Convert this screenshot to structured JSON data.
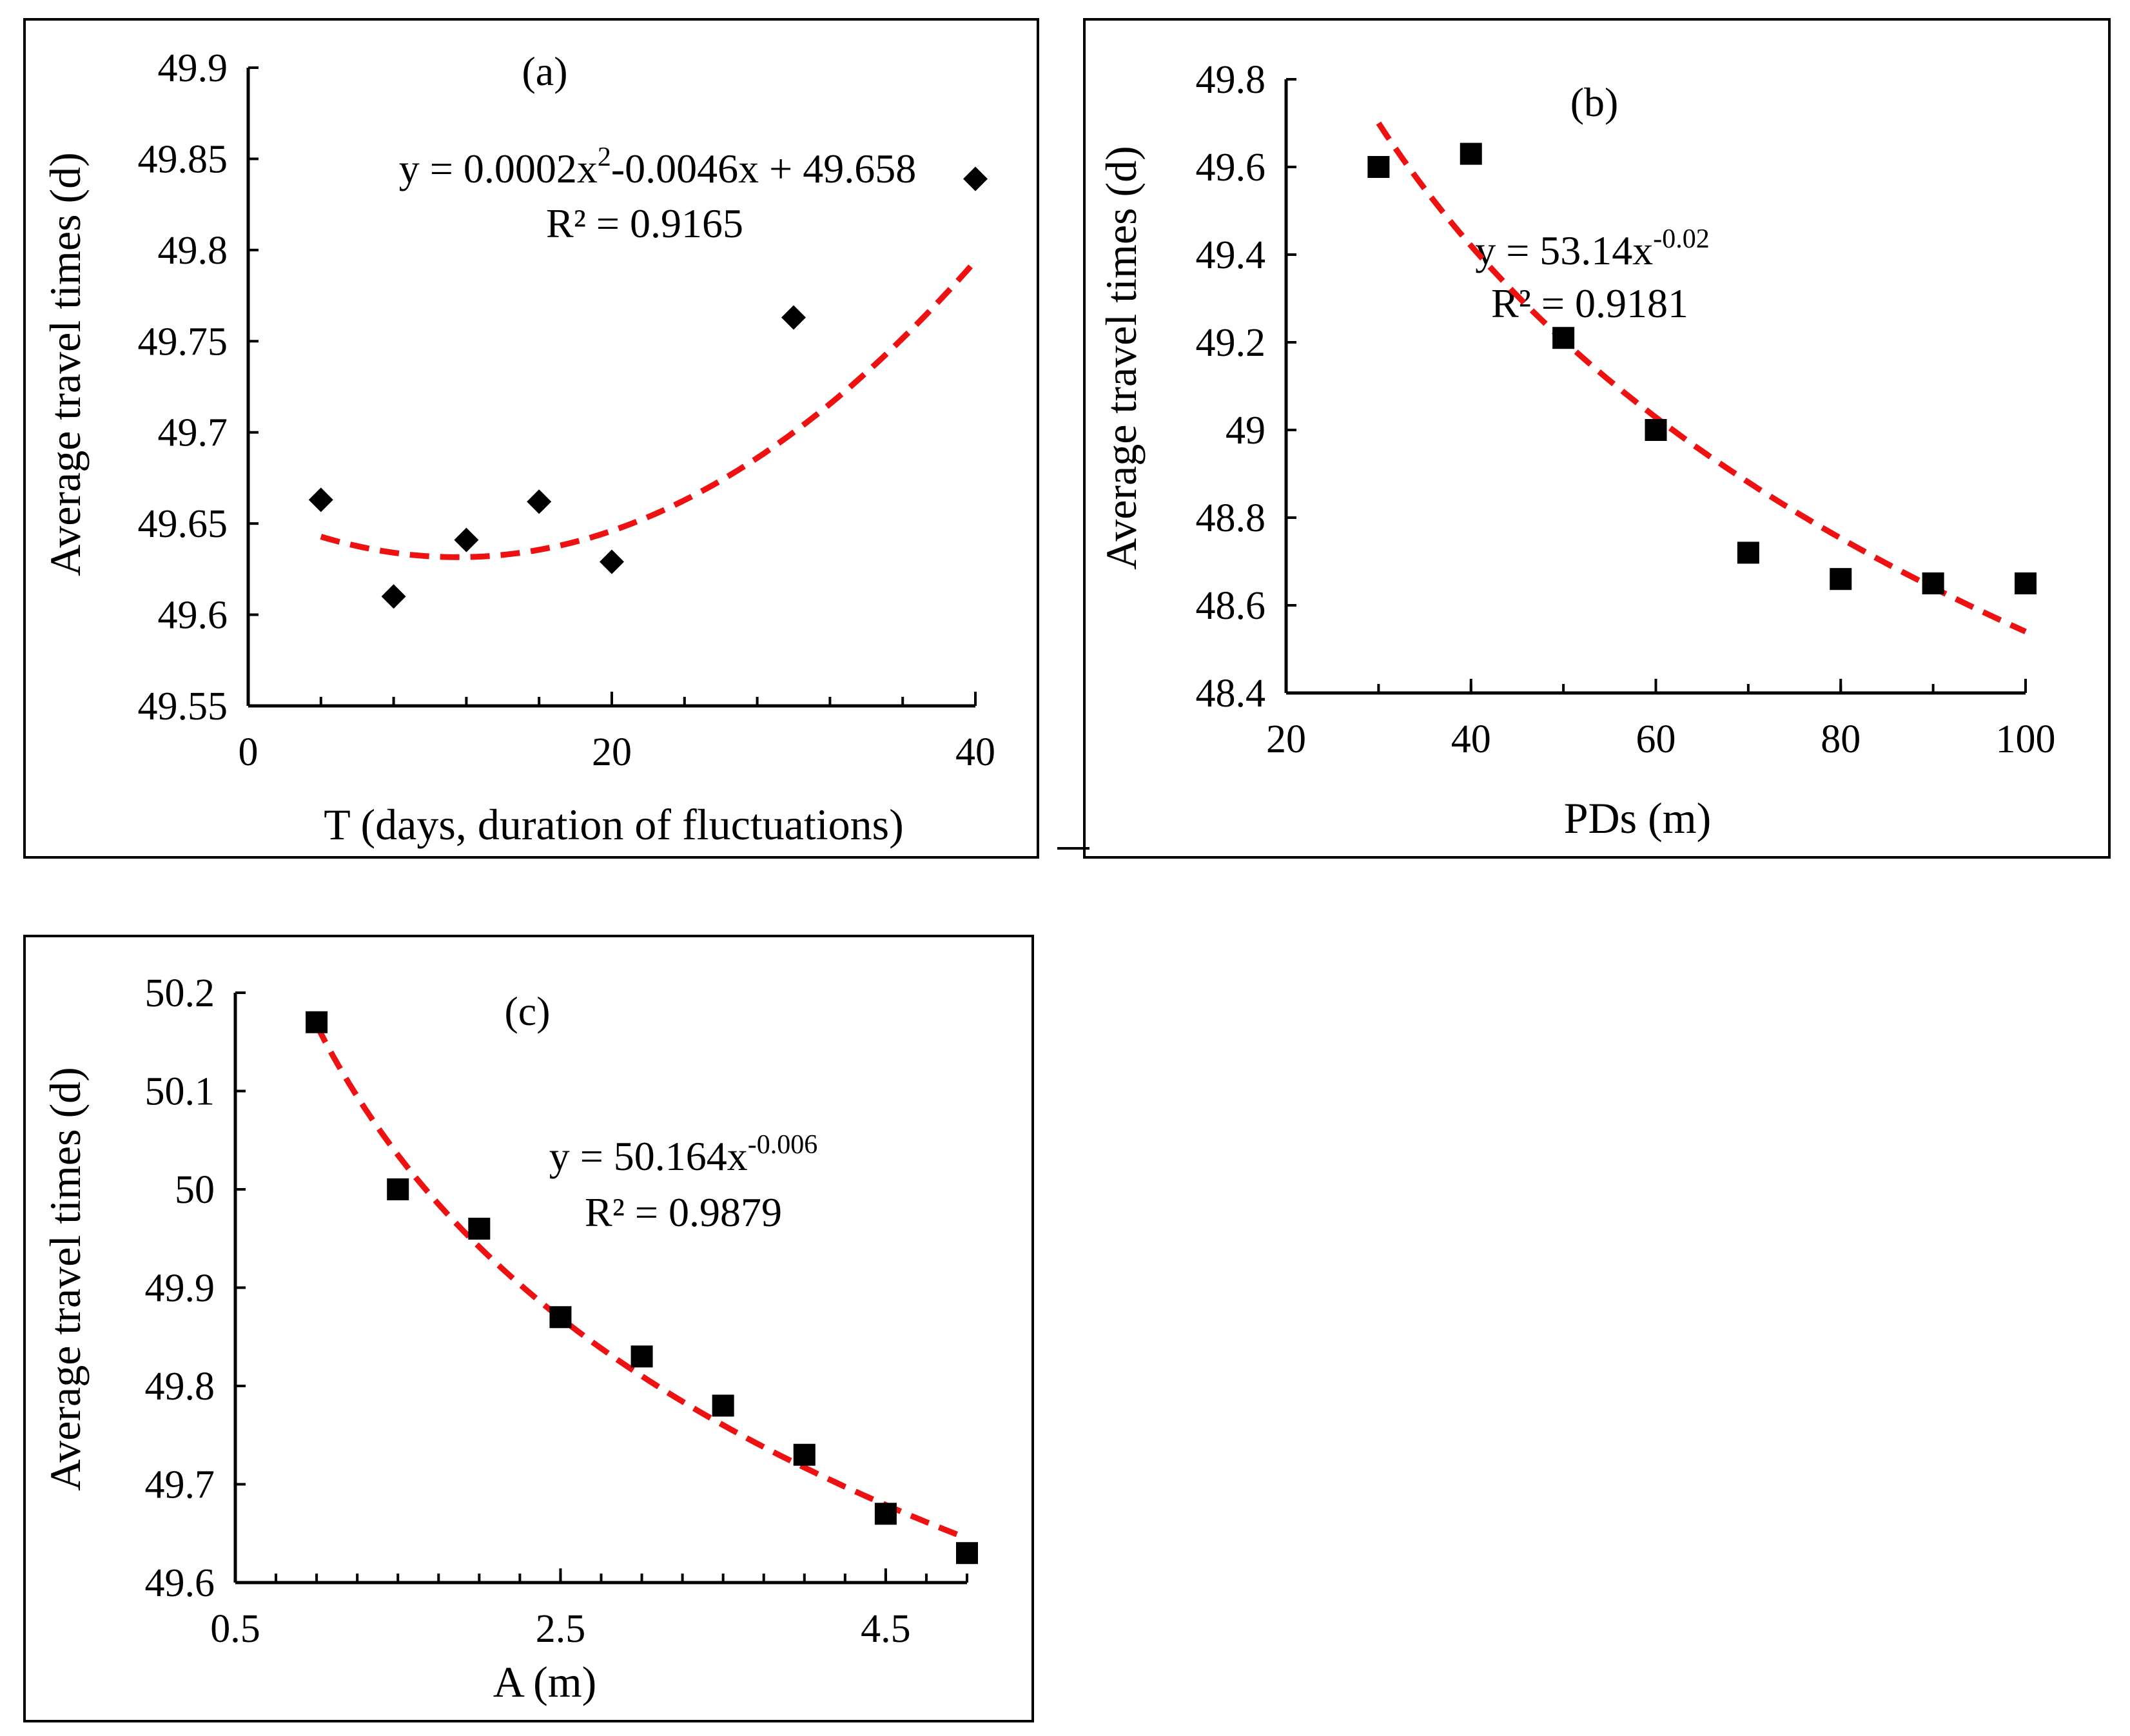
{
  "colors": {
    "marker": "#000000",
    "trendline": "#ee1111",
    "axis": "#000000"
  },
  "chart_data": [
    {
      "type": "scatter",
      "panel_label": "(a)",
      "marker": "diamond",
      "xlabel": "T (days, duration of fluctuations)",
      "ylabel": "Average travel times (d)",
      "xlim": [
        0,
        40
      ],
      "ylim": [
        49.55,
        49.9
      ],
      "xticks": [
        0,
        20,
        40
      ],
      "yticks": [
        49.55,
        49.6,
        49.65,
        49.7,
        49.75,
        49.8,
        49.85,
        49.9
      ],
      "x_minor_step": 4,
      "x": [
        4,
        8,
        12,
        16,
        20,
        30,
        40
      ],
      "y": [
        49.663,
        49.61,
        49.641,
        49.662,
        49.629,
        49.763,
        49.839
      ],
      "trendline": {
        "kind": "polynomial",
        "coefficients": [
          0.0002,
          -0.0046,
          49.658
        ],
        "domain": [
          4,
          40
        ]
      },
      "equation": {
        "prefix": "y = 0.0002x",
        "superscript": "2",
        "suffix": "-0.0046x + 49.658"
      },
      "r2": "R² = 0.9165"
    },
    {
      "type": "scatter",
      "panel_label": "(b)",
      "marker": "square",
      "xlabel": "PDs (m)",
      "ylabel": "Average travel times (d)",
      "xlim": [
        20,
        100
      ],
      "ylim": [
        48.4,
        49.8
      ],
      "xticks": [
        20,
        40,
        60,
        80,
        100
      ],
      "yticks": [
        48.4,
        48.6,
        48.8,
        49,
        49.2,
        49.4,
        49.6,
        49.8
      ],
      "ytick_labels": [
        "48.4",
        "48.6",
        "48.8",
        "49",
        "49.2",
        "49.4",
        "49.6",
        "49.8"
      ],
      "x_minor_step": 10,
      "x": [
        30,
        40,
        50,
        60,
        70,
        80,
        90,
        100
      ],
      "y": [
        49.6,
        49.63,
        49.21,
        49.0,
        48.72,
        48.66,
        48.65,
        48.65
      ],
      "trendline": {
        "kind": "power_fit",
        "domain": [
          30,
          100
        ],
        "endpoints": [
          49.7,
          48.54
        ]
      },
      "equation": {
        "prefix": "y = 53.14x",
        "superscript": "-0.02",
        "suffix": ""
      },
      "r2": "R² = 0.9181"
    },
    {
      "type": "scatter",
      "panel_label": "(c)",
      "marker": "square",
      "xlabel": "A (m)",
      "ylabel": "Average travel times (d)",
      "xlim": [
        0.5,
        5
      ],
      "ylim": [
        49.6,
        50.2
      ],
      "xticks": [
        0.5,
        2.5,
        4.5
      ],
      "yticks": [
        49.6,
        49.7,
        49.8,
        49.9,
        50,
        50.1,
        50.2
      ],
      "x_minor_step": 0.25,
      "x": [
        1,
        1.5,
        2,
        2.5,
        3,
        3.5,
        4,
        4.5,
        5
      ],
      "y": [
        50.17,
        50.0,
        49.96,
        49.87,
        49.83,
        49.78,
        49.73,
        49.67,
        49.63
      ],
      "trendline": {
        "kind": "power_fit",
        "domain": [
          1,
          5
        ],
        "endpoints": [
          50.167,
          49.645
        ]
      },
      "equation": {
        "prefix": "y = 50.164x",
        "superscript": "-0.006",
        "suffix": ""
      },
      "r2": "R² = 0.9879"
    }
  ]
}
